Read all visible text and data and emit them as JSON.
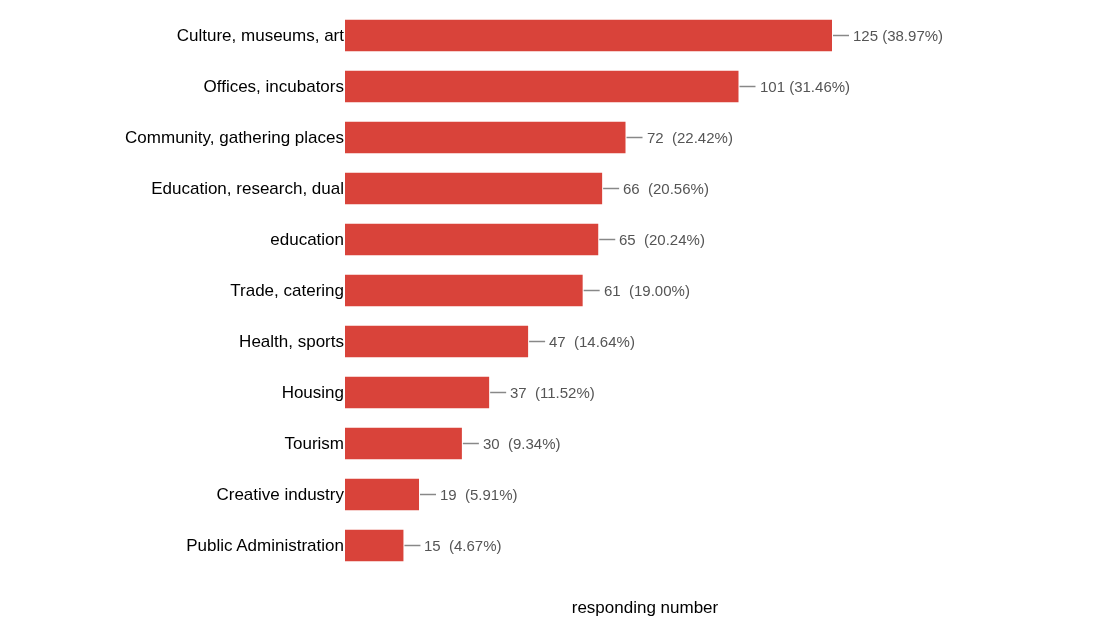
{
  "chart_data": {
    "type": "bar",
    "orientation": "horizontal",
    "xlabel": "responding number",
    "categories": [
      "Culture, museums, art",
      "Offices, incubators",
      "Community, gathering places",
      "Education, research, dual",
      "education",
      "Trade, catering",
      "Health, sports",
      "Housing",
      "Tourism",
      "Creative industry",
      "Public Administration"
    ],
    "values": [
      125,
      101,
      72,
      66,
      65,
      61,
      47,
      37,
      30,
      19,
      15
    ],
    "value_labels": [
      "125 (38.97%)",
      "101 (31.46%)",
      "72  (22.42%)",
      "66  (20.56%)",
      "65  (20.24%)",
      "61  (19.00%)",
      "47  (14.64%)",
      "37  (11.52%)",
      "30  (9.34%)",
      "19  (5.91%)",
      "15  (4.67%)"
    ],
    "color": "#d9433a",
    "grid": false,
    "legend": false
  }
}
